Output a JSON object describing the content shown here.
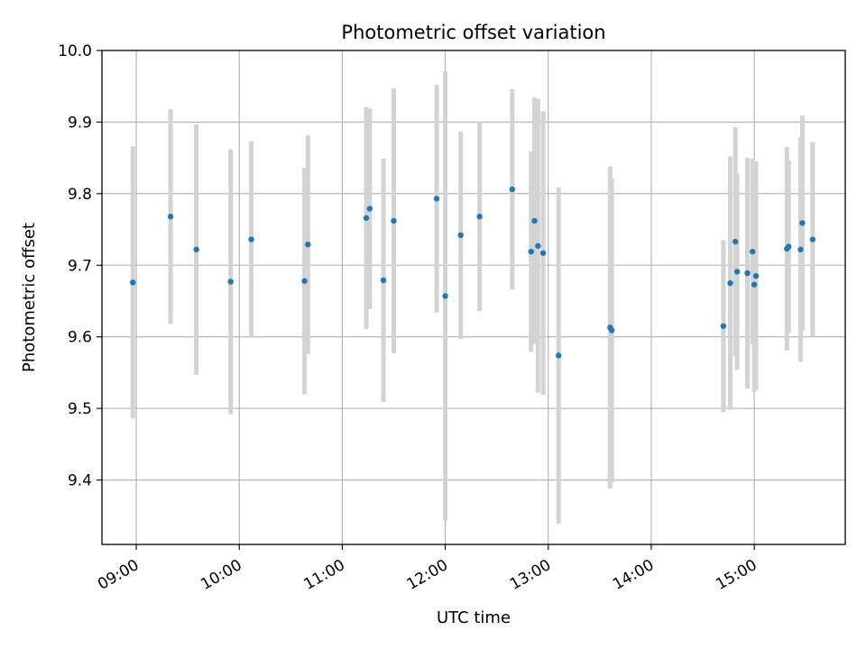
{
  "chart_data": {
    "type": "scatter",
    "title": "Photometric offset variation",
    "xlabel": "UTC time",
    "ylabel": "Photometric offset",
    "x_ticks": [
      "09:00",
      "10:00",
      "11:00",
      "12:00",
      "13:00",
      "14:00",
      "15:00"
    ],
    "y_ticks": [
      "9.4",
      "9.5",
      "9.6",
      "9.7",
      "9.8",
      "9.9",
      "10.0"
    ],
    "xlim": [
      "08:40",
      "15:53"
    ],
    "ylim": [
      9.31,
      10.0
    ],
    "grid": true,
    "legend": "none",
    "colors": {
      "points": "#1f77b4",
      "error_bars": "#d3d3d3",
      "grid": "#b0b0b0"
    },
    "points": [
      {
        "x": "08:58",
        "y": 9.676,
        "err": 0.19
      },
      {
        "x": "09:20",
        "y": 9.768,
        "err": 0.15
      },
      {
        "x": "09:35",
        "y": 9.722,
        "err": 0.175
      },
      {
        "x": "09:55",
        "y": 9.677,
        "err": 0.185
      },
      {
        "x": "10:07",
        "y": 9.736,
        "err": 0.137
      },
      {
        "x": "10:38",
        "y": 9.678,
        "err": 0.158
      },
      {
        "x": "10:40",
        "y": 9.729,
        "err": 0.153
      },
      {
        "x": "11:14",
        "y": 9.766,
        "err": 0.155
      },
      {
        "x": "11:16",
        "y": 9.779,
        "err": 0.14
      },
      {
        "x": "11:24",
        "y": 9.679,
        "err": 0.17
      },
      {
        "x": "11:30",
        "y": 9.762,
        "err": 0.185
      },
      {
        "x": "11:55",
        "y": 9.793,
        "err": 0.159
      },
      {
        "x": "12:00",
        "y": 9.657,
        "err": 0.314
      },
      {
        "x": "12:09",
        "y": 9.742,
        "err": 0.145
      },
      {
        "x": "12:20",
        "y": 9.768,
        "err": 0.132
      },
      {
        "x": "12:39",
        "y": 9.806,
        "err": 0.14
      },
      {
        "x": "12:50",
        "y": 9.719,
        "err": 0.14
      },
      {
        "x": "12:52",
        "y": 9.762,
        "err": 0.172
      },
      {
        "x": "12:54",
        "y": 9.727,
        "err": 0.205
      },
      {
        "x": "12:57",
        "y": 9.717,
        "err": 0.198
      },
      {
        "x": "13:06",
        "y": 9.574,
        "err": 0.235
      },
      {
        "x": "13:36",
        "y": 9.613,
        "err": 0.225
      },
      {
        "x": "13:37",
        "y": 9.609,
        "err": 0.212
      },
      {
        "x": "14:42",
        "y": 9.615,
        "err": 0.12
      },
      {
        "x": "14:46",
        "y": 9.675,
        "err": 0.177
      },
      {
        "x": "14:49",
        "y": 9.733,
        "err": 0.16
      },
      {
        "x": "14:50",
        "y": 9.691,
        "err": 0.137
      },
      {
        "x": "14:56",
        "y": 9.689,
        "err": 0.161
      },
      {
        "x": "14:59",
        "y": 9.719,
        "err": 0.13
      },
      {
        "x": "15:00",
        "y": 9.673,
        "err": 0.15
      },
      {
        "x": "15:01",
        "y": 9.685,
        "err": 0.16
      },
      {
        "x": "15:19",
        "y": 9.723,
        "err": 0.142
      },
      {
        "x": "15:20",
        "y": 9.726,
        "err": 0.12
      },
      {
        "x": "15:27",
        "y": 9.722,
        "err": 0.157
      },
      {
        "x": "15:28",
        "y": 9.759,
        "err": 0.15
      },
      {
        "x": "15:34",
        "y": 9.736,
        "err": 0.136
      }
    ]
  }
}
